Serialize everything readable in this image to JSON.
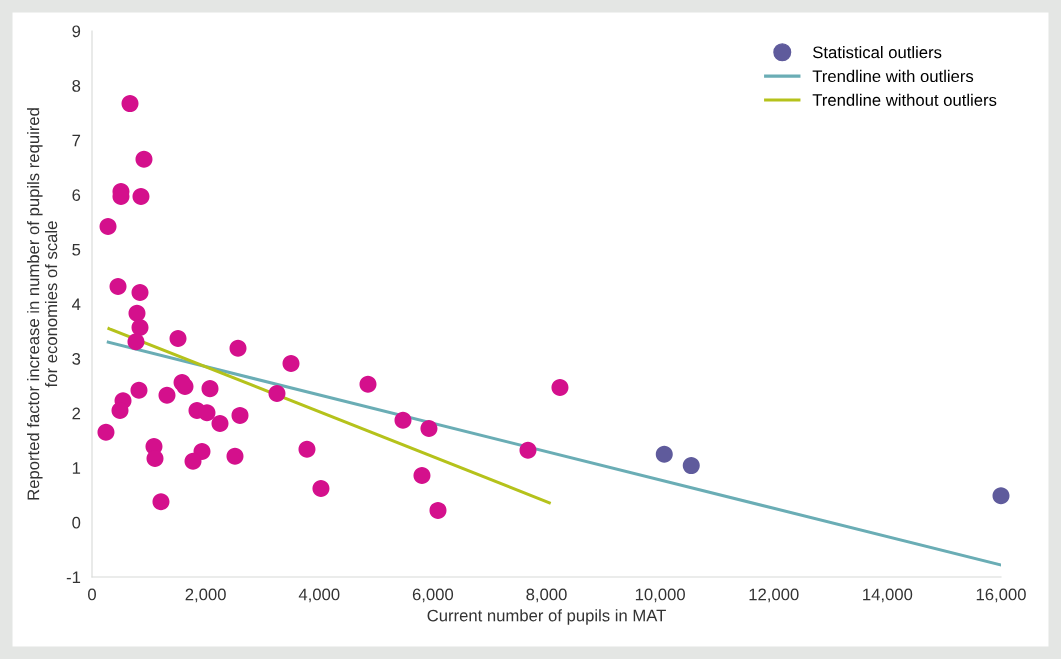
{
  "chart_data": {
    "type": "scatter",
    "xlabel": "Current number of pupils in MAT",
    "ylabel": "Reported factor increase in number of pupils required\nfor economies of scale",
    "xlim": [
      0,
      16000
    ],
    "xticks": [
      {
        "value": 0,
        "label": "0"
      },
      {
        "value": 2000,
        "label": "2,000"
      },
      {
        "value": 4000,
        "label": "4,000"
      },
      {
        "value": 6000,
        "label": "6,000"
      },
      {
        "value": 8000,
        "label": "8,000"
      },
      {
        "value": 10000,
        "label": "10,000"
      },
      {
        "value": 12000,
        "label": "12,000"
      },
      {
        "value": 14000,
        "label": "14,000"
      },
      {
        "value": 16000,
        "label": "16,000"
      }
    ],
    "ylim": [
      -1,
      9
    ],
    "yticks": [
      -1,
      0,
      1,
      2,
      3,
      4,
      5,
      6,
      7,
      8,
      9
    ],
    "grid": false,
    "legend": "top right",
    "series": [
      {
        "marker": "circle",
        "color": "#d4108c",
        "x": [
          669,
          915,
          510,
          510,
          862,
          282,
          458,
          845,
          792,
          845,
          774,
          1514,
          2570,
          3503,
          4858,
          8237,
          827,
          1585,
          1637,
          2077,
          1320,
          3256,
          546,
          493,
          1848,
          2024,
          2605,
          2253,
          5474,
          5931,
          246,
          1091,
          1109,
          1936,
          1778,
          2517,
          3784,
          7674,
          5808,
          4030,
          1214,
          6090
        ],
        "values": [
          7.67,
          6.65,
          6.06,
          5.97,
          5.97,
          5.42,
          4.32,
          4.21,
          3.83,
          3.57,
          3.31,
          3.37,
          3.19,
          2.91,
          2.53,
          2.47,
          2.42,
          2.56,
          2.49,
          2.45,
          2.33,
          2.36,
          2.23,
          2.05,
          2.05,
          2.01,
          1.96,
          1.81,
          1.87,
          1.72,
          1.65,
          1.39,
          1.17,
          1.3,
          1.12,
          1.21,
          1.34,
          1.32,
          0.86,
          0.62,
          0.38,
          0.22
        ]
      },
      {
        "marker": "circle",
        "name": "Statistical outliers",
        "color": "#5f5b9c",
        "x": [
          10073,
          10548,
          16000
        ],
        "values": [
          1.25,
          1.04,
          0.49
        ]
      },
      {
        "type": "line",
        "marker": "none",
        "name": "Trendline with outliers",
        "color": "#6aadb5",
        "x": [
          287,
          16000
        ],
        "values": [
          3.3,
          -0.78
        ]
      },
      {
        "type": "line",
        "marker": "none",
        "name": "Trendline without outliers",
        "color": "#b5c21b",
        "x": [
          299,
          8049
        ],
        "values": [
          3.55,
          0.36
        ]
      }
    ]
  }
}
